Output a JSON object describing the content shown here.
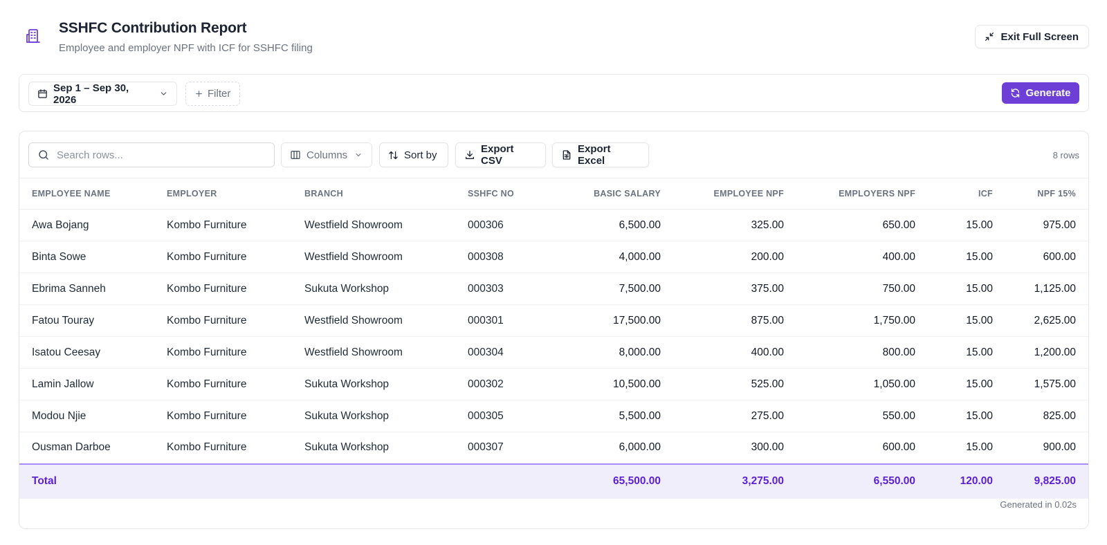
{
  "header": {
    "title": "SSHFC Contribution Report",
    "subtitle": "Employee and employer NPF with ICF for SSHFC filing",
    "exit_fullscreen_label": "Exit Full Screen"
  },
  "toolbar": {
    "date_range": "Sep 1 – Sep 30, 2026",
    "filter_label": "Filter",
    "generate_label": "Generate"
  },
  "table_toolbar": {
    "search_placeholder": "Search rows...",
    "columns_label": "Columns",
    "sort_label": "Sort by",
    "export_csv_label": "Export CSV",
    "export_excel_label": "Export Excel",
    "row_count": "8 rows"
  },
  "table": {
    "columns": [
      "Employee Name",
      "Employer",
      "Branch",
      "SSHFC No",
      "Basic Salary",
      "Employee NPF",
      "Employers NPF",
      "ICF",
      "NPF 15%"
    ],
    "rows": [
      [
        "Awa Bojang",
        "Kombo Furniture",
        "Westfield Showroom",
        "000306",
        "6,500.00",
        "325.00",
        "650.00",
        "15.00",
        "975.00"
      ],
      [
        "Binta Sowe",
        "Kombo Furniture",
        "Westfield Showroom",
        "000308",
        "4,000.00",
        "200.00",
        "400.00",
        "15.00",
        "600.00"
      ],
      [
        "Ebrima Sanneh",
        "Kombo Furniture",
        "Sukuta Workshop",
        "000303",
        "7,500.00",
        "375.00",
        "750.00",
        "15.00",
        "1,125.00"
      ],
      [
        "Fatou Touray",
        "Kombo Furniture",
        "Westfield Showroom",
        "000301",
        "17,500.00",
        "875.00",
        "1,750.00",
        "15.00",
        "2,625.00"
      ],
      [
        "Isatou Ceesay",
        "Kombo Furniture",
        "Westfield Showroom",
        "000304",
        "8,000.00",
        "400.00",
        "800.00",
        "15.00",
        "1,200.00"
      ],
      [
        "Lamin Jallow",
        "Kombo Furniture",
        "Sukuta Workshop",
        "000302",
        "10,500.00",
        "525.00",
        "1,050.00",
        "15.00",
        "1,575.00"
      ],
      [
        "Modou Njie",
        "Kombo Furniture",
        "Sukuta Workshop",
        "000305",
        "5,500.00",
        "275.00",
        "550.00",
        "15.00",
        "825.00"
      ],
      [
        "Ousman Darboe",
        "Kombo Furniture",
        "Sukuta Workshop",
        "000307",
        "6,000.00",
        "300.00",
        "600.00",
        "15.00",
        "900.00"
      ]
    ],
    "total": {
      "label": "Total",
      "basic_salary": "65,500.00",
      "employee_npf": "3,275.00",
      "employers_npf": "6,550.00",
      "icf": "120.00",
      "npf_15": "9,825.00"
    },
    "footer_note": "Generated in 0.02s"
  },
  "colors": {
    "accent": "#6d3fd6",
    "total_bg": "#f1eefc",
    "total_text": "#5b21d6"
  },
  "icons": {
    "header": "building-icon",
    "exit": "minimize-icon",
    "date": "calendar-icon",
    "filter": "plus-icon",
    "generate": "refresh-icon",
    "search": "search-icon",
    "columns": "columns-icon",
    "sort": "sort-icon",
    "csv": "download-icon",
    "excel": "file-spreadsheet-icon"
  }
}
